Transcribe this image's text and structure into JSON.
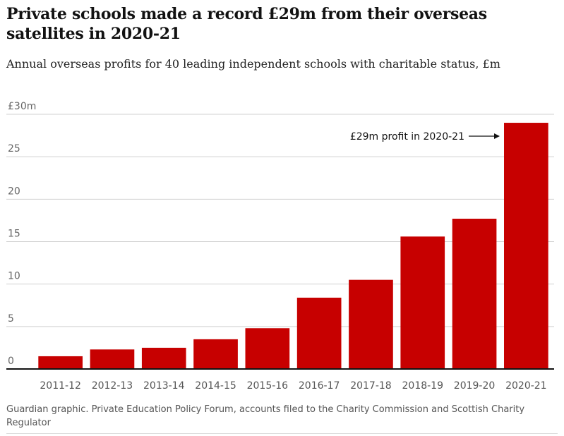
{
  "chart_data": {
    "type": "bar",
    "title": "Private schools made a record £29m from their overseas satellites in 2020-21",
    "subtitle": "Annual overseas profits for 40 leading independent schools with charitable status, £m",
    "categories": [
      "2011-12",
      "2012-13",
      "2013-14",
      "2014-15",
      "2015-16",
      "2016-17",
      "2017-18",
      "2018-19",
      "2019-20",
      "2020-21"
    ],
    "values": [
      1.5,
      2.3,
      2.5,
      3.5,
      4.8,
      8.4,
      10.5,
      15.6,
      17.7,
      29.0
    ],
    "ylim": [
      0,
      30
    ],
    "yticks": [
      {
        "value": 0,
        "label": "0"
      },
      {
        "value": 5,
        "label": "5"
      },
      {
        "value": 10,
        "label": "10"
      },
      {
        "value": 15,
        "label": "15"
      },
      {
        "value": 20,
        "label": "20"
      },
      {
        "value": 25,
        "label": "25"
      },
      {
        "value": 30,
        "label": "£30m"
      }
    ],
    "xlabel": "",
    "ylabel": "",
    "grid": true,
    "bar_color": "#c70000",
    "annotation": {
      "text": "£29m profit in 2020-21",
      "category": "2020-21"
    }
  },
  "source": "Guardian graphic. Private Education Policy Forum, accounts filed to the Charity Commission and Scottish Charity Regulator"
}
